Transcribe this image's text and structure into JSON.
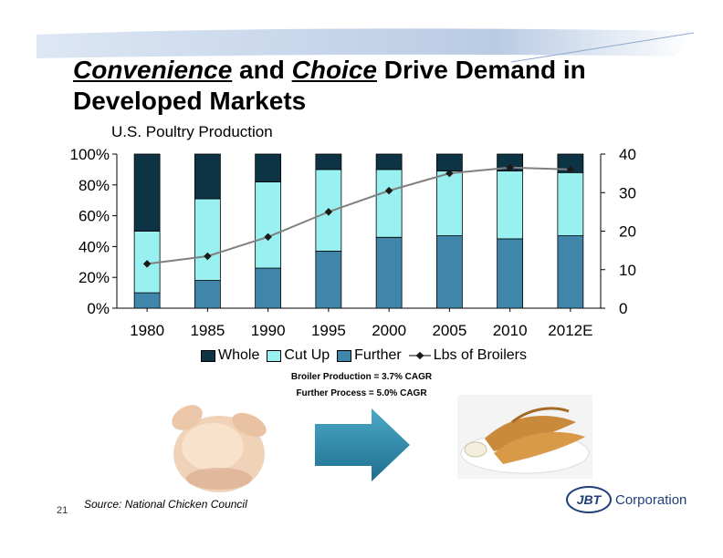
{
  "slide": {
    "title_word1": "Convenience",
    "title_and": " and ",
    "title_word2": "Choice",
    "title_rest": " Drive Demand in Developed Markets",
    "subtitle": "U.S. Poultry Production",
    "cagr_line1": "Broiler Production = 3.7% CAGR",
    "cagr_line2": "Further Process = 5.0% CAGR",
    "source": "Source: National Chicken Council",
    "page_number": "21",
    "logo_mark": "JBT",
    "logo_word": "Corporation"
  },
  "colors": {
    "whole": "#0d3445",
    "cut_up": "#99f0f0",
    "further": "#3f86aa",
    "line": "#808080",
    "marker": "#1a1a1a"
  },
  "chart_data": {
    "type": "bar",
    "stacked": true,
    "categories": [
      "1980",
      "1985",
      "1990",
      "1995",
      "2000",
      "2005",
      "2010",
      "2012E"
    ],
    "series": [
      {
        "name": "Whole",
        "axis": "left",
        "values": [
          50,
          29,
          18,
          10,
          10,
          11,
          11,
          12
        ]
      },
      {
        "name": "Cut Up",
        "axis": "left",
        "values": [
          40,
          53,
          56,
          53,
          44,
          42,
          44,
          41
        ]
      },
      {
        "name": "Further",
        "axis": "left",
        "values": [
          10,
          18,
          26,
          37,
          46,
          47,
          45,
          47
        ]
      },
      {
        "name": "Lbs of Broilers",
        "type": "line",
        "axis": "right",
        "values": [
          11.5,
          13.5,
          18.5,
          25,
          30.5,
          35,
          36.5,
          36
        ]
      }
    ],
    "stack_order_bottom_to_top": [
      "Further",
      "Cut Up",
      "Whole"
    ],
    "y_left": {
      "min": 0,
      "max": 100,
      "ticks": [
        "0%",
        "20%",
        "40%",
        "60%",
        "80%",
        "100%"
      ]
    },
    "y_right": {
      "min": 0,
      "max": 40,
      "ticks": [
        "0",
        "10",
        "20",
        "30",
        "40"
      ]
    },
    "legend": [
      "Whole",
      "Cut Up",
      "Further",
      "Lbs of Broilers"
    ],
    "legend_position": "bottom"
  }
}
